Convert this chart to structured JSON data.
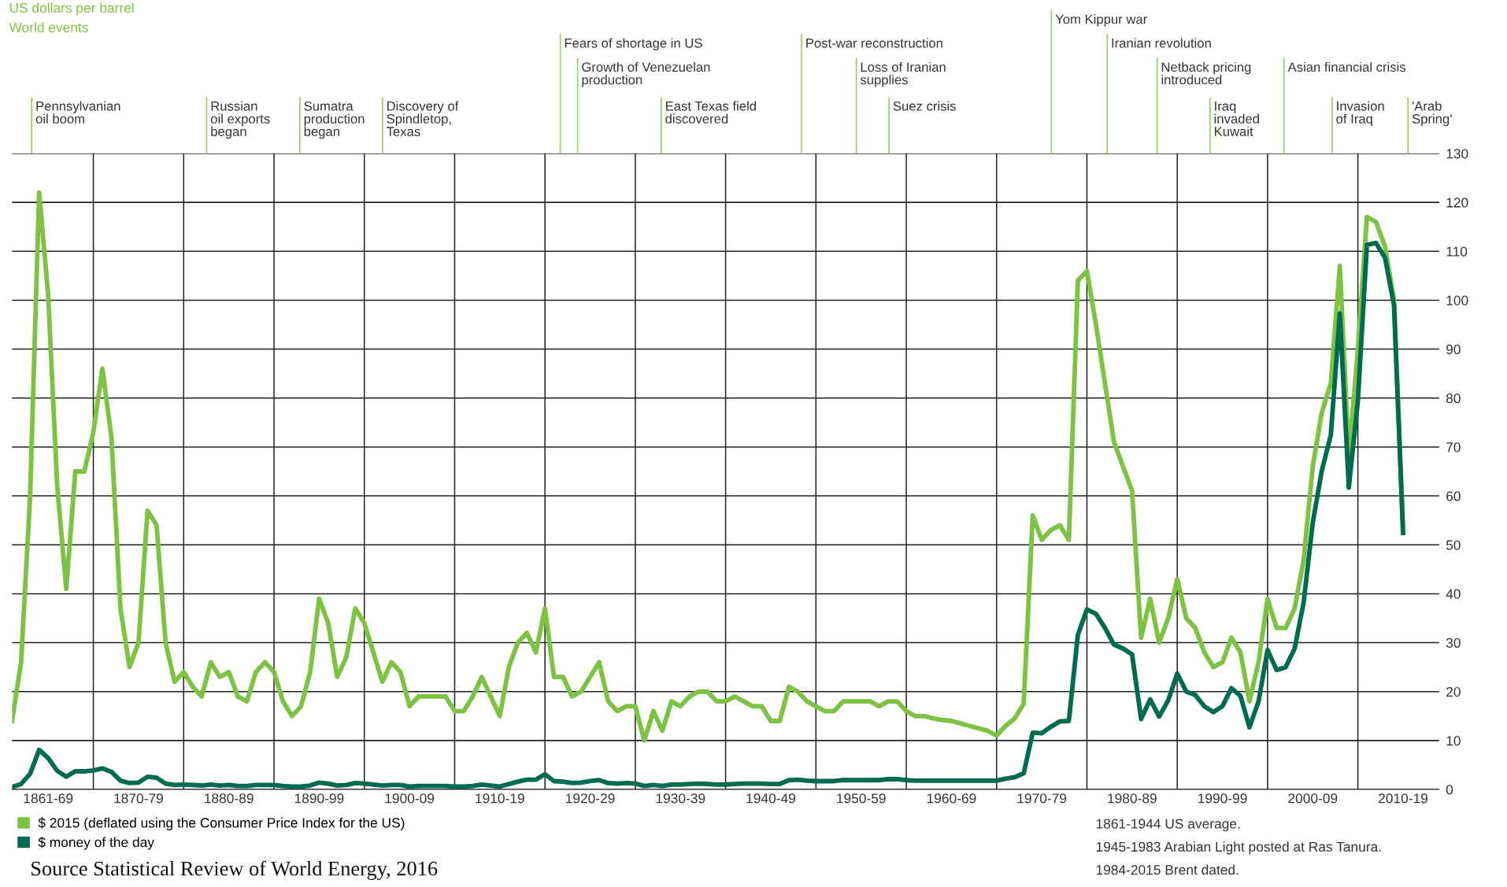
{
  "chart_data": {
    "type": "line",
    "subtitle": "World events",
    "categories": [
      null,
      null,
      null,
      null,
      "1861-69",
      null,
      null,
      null,
      null,
      null,
      null,
      null,
      null,
      null,
      "1870-79",
      null,
      null,
      null,
      null,
      null,
      null,
      null,
      null,
      null,
      "1880-89",
      null,
      null,
      null,
      null,
      null,
      null,
      null,
      null,
      null,
      "1890-99",
      null,
      null,
      null,
      null,
      null,
      null,
      null,
      null,
      null,
      "1900-09",
      null,
      null,
      null,
      null,
      null,
      null,
      null,
      null,
      null,
      "1910-19",
      null,
      null,
      null,
      null,
      null,
      null,
      null,
      null,
      null,
      "1920-29",
      null,
      null,
      null,
      null,
      null,
      null,
      null,
      null,
      null,
      "1930-39",
      null,
      null,
      null,
      null,
      null,
      null,
      null,
      null,
      null,
      "1940-49",
      null,
      null,
      null,
      null,
      null,
      null,
      null,
      null,
      null,
      "1950-59",
      null,
      null,
      null,
      null,
      null,
      null,
      null,
      null,
      null,
      "1960-69",
      null,
      null,
      null,
      null,
      null,
      null,
      null,
      null,
      null,
      "1970-79",
      null,
      null,
      null,
      null,
      null,
      null,
      null,
      null,
      null,
      "1980-89",
      null,
      null,
      null,
      null,
      null,
      null,
      null,
      null,
      null,
      "1990-99",
      null,
      null,
      null,
      null,
      null,
      null,
      null,
      null,
      null,
      "2000-09",
      null,
      null,
      null,
      null,
      null,
      null,
      null,
      null,
      null,
      "2010-19",
      null,
      null,
      null,
      null
    ],
    "ylim": [
      0,
      130
    ],
    "yticks": [
      0,
      10,
      20,
      30,
      40,
      50,
      60,
      70,
      80,
      90,
      100,
      110,
      120,
      130
    ],
    "grid": true,
    "legend": "bottom left",
    "marker": "none",
    "line_style": "solid",
    "series": [
      {
        "name": "$ 2015 (deflated using the Consumer Price Index for the US)",
        "color": "#7dc242",
        "values": [
          14,
          26,
          60,
          122,
          101,
          62,
          41,
          65,
          65,
          73,
          86,
          72,
          37,
          25,
          30,
          57,
          54,
          30,
          22,
          24,
          21,
          19,
          26,
          23,
          24,
          19,
          18,
          24,
          26,
          24,
          18,
          15,
          17,
          24,
          39,
          34,
          23,
          27,
          37,
          34,
          28,
          22,
          26,
          24,
          17,
          19,
          19,
          19,
          19,
          16,
          16,
          19,
          23,
          19,
          15,
          25,
          30,
          32,
          28,
          37,
          23,
          23,
          19,
          20,
          23,
          26,
          18,
          16,
          17,
          17,
          10,
          16,
          12,
          18,
          17,
          19,
          20,
          20,
          18,
          18,
          19,
          18,
          17,
          17,
          14,
          14,
          21,
          20,
          18,
          17,
          16,
          16,
          18,
          18,
          18,
          18,
          17,
          18,
          18,
          16,
          15,
          15,
          14.5,
          14.2,
          14,
          13.5,
          13,
          12.5,
          12,
          11,
          13,
          14.5,
          17.5,
          56,
          51,
          53,
          54,
          51,
          104,
          106,
          95,
          83,
          71,
          66,
          61,
          31,
          39,
          30,
          35,
          43,
          35,
          33,
          28,
          25,
          26,
          31,
          28,
          18,
          26,
          39,
          33,
          33,
          37,
          47,
          66,
          77,
          83,
          107,
          68,
          90,
          117,
          116,
          111,
          100,
          53,
          null,
          null,
          null,
          null
        ]
      },
      {
        "name": "$ money of the day",
        "color": "#006c4f",
        "values": [
          0.5,
          1.1,
          3.2,
          8.1,
          6.4,
          3.8,
          2.6,
          3.7,
          3.7,
          3.9,
          4.3,
          3.6,
          1.8,
          1.3,
          1.4,
          2.6,
          2.4,
          1.2,
          0.9,
          1.0,
          0.9,
          0.8,
          1.0,
          0.8,
          0.9,
          0.7,
          0.7,
          0.9,
          0.9,
          0.9,
          0.7,
          0.6,
          0.6,
          0.8,
          1.4,
          1.2,
          0.8,
          0.9,
          1.3,
          1.2,
          1.0,
          0.8,
          0.9,
          0.9,
          0.6,
          0.7,
          0.7,
          0.7,
          0.7,
          0.6,
          0.6,
          0.7,
          1.0,
          0.8,
          0.6,
          1.1,
          1.6,
          2.0,
          2.0,
          3.1,
          1.7,
          1.6,
          1.3,
          1.4,
          1.7,
          1.9,
          1.3,
          1.2,
          1.3,
          1.2,
          0.7,
          0.9,
          0.7,
          1.0,
          1.0,
          1.1,
          1.2,
          1.1,
          1.0,
          1.0,
          1.1,
          1.2,
          1.2,
          1.2,
          1.1,
          1.1,
          1.9,
          2.0,
          1.8,
          1.7,
          1.7,
          1.7,
          1.9,
          1.9,
          1.9,
          1.9,
          1.9,
          2.1,
          2.1,
          1.9,
          1.8,
          1.8,
          1.8,
          1.8,
          1.8,
          1.8,
          1.8,
          1.8,
          1.8,
          1.8,
          2.2,
          2.5,
          3.3,
          11.6,
          11.5,
          12.8,
          13.9,
          14.0,
          31.6,
          36.8,
          35.9,
          33.0,
          29.6,
          28.8,
          27.6,
          14.4,
          18.4,
          14.9,
          18.2,
          23.7,
          20.0,
          19.3,
          17.0,
          15.8,
          17.0,
          20.7,
          19.1,
          12.7,
          18.0,
          28.5,
          24.4,
          25.0,
          28.8,
          38.3,
          54.5,
          65.1,
          72.4,
          97.3,
          61.7,
          79.5,
          111.3,
          111.7,
          108.7,
          99,
          52.4,
          null,
          null,
          null,
          null
        ]
      }
    ],
    "annotations": [
      "Pennsylvanian\noil boom",
      "Russian\noil exports\nbegan",
      "Sumatra\nproduction\nbegan",
      "Discovery of\nSpindletop,\nTexas",
      "Fears of shortage in US",
      "Growth of Venezuelan\nproduction",
      "East Texas field\ndiscovered",
      "Post-war reconstruction",
      "Loss of Iranian\nsupplies",
      "Suez crisis",
      "Yom Kippur war",
      "Iranian revolution",
      "Netback pricing\nintroduced",
      "Iraq\ninvaded\nKuwait",
      "Asian financial crisis",
      "Invasion\nof Iraq",
      "'Arab\nSpring'",
      "US dollars per barrel",
      "1861-1944 US average.",
      "1945-1983 Arabian Light posted at Ras Tanura.",
      "1984-2015 Brent dated.",
      "Source Statistical Review of World Energy, 2016"
    ]
  }
}
